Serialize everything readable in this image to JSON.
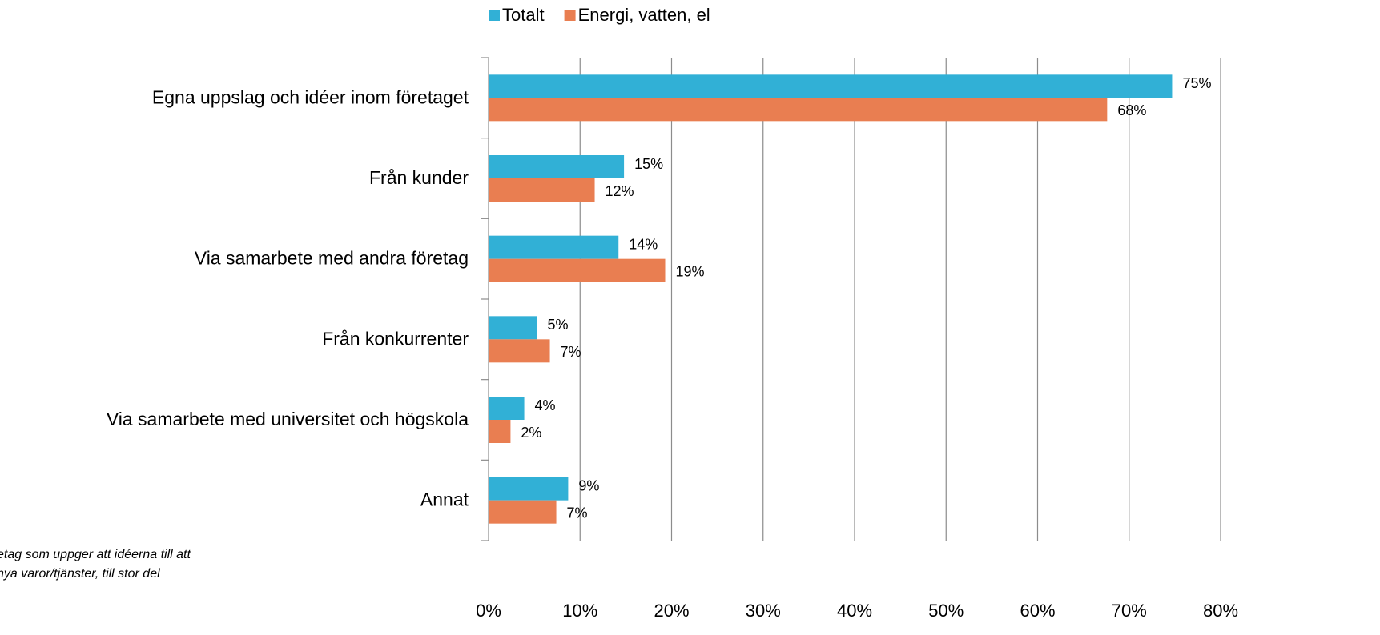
{
  "chart_data": {
    "type": "bar",
    "orientation": "horizontal",
    "categories": [
      "Egna uppslag och idéer inom företaget",
      "Från kunder",
      "Via samarbete med andra företag",
      "Från konkurrenter",
      "Via samarbete med universitet och högskola",
      "Annat"
    ],
    "series": [
      {
        "name": "Totalt",
        "color": "#31b0d6",
        "values": [
          74.7,
          14.8,
          14.2,
          5.3,
          3.9,
          8.7
        ],
        "value_labels": [
          "75%",
          "15%",
          "14%",
          "5%",
          "4%",
          "9%"
        ]
      },
      {
        "name": "Energi, vatten, el",
        "color": "#e97e51",
        "values": [
          67.6,
          11.6,
          19.3,
          6.7,
          2.4,
          7.4
        ],
        "value_labels": [
          "68%",
          "12%",
          "19%",
          "7%",
          "2%",
          "7%"
        ]
      }
    ],
    "xlim": [
      0,
      80
    ],
    "xticks": [
      {
        "value": 0,
        "label": "0%"
      },
      {
        "value": 10,
        "label": "10%"
      },
      {
        "value": 20,
        "label": "20%"
      },
      {
        "value": 30,
        "label": "30%"
      },
      {
        "value": 40,
        "label": "40%"
      },
      {
        "value": 50,
        "label": "50%"
      },
      {
        "value": 60,
        "label": "60%"
      },
      {
        "value": 70,
        "label": "70%"
      },
      {
        "value": 80,
        "label": "80%"
      }
    ],
    "grid": true,
    "legend": "top",
    "annotations": [
      "etag som uppger att idéerna till att",
      "nya varor/tjänster, till stor del"
    ]
  }
}
